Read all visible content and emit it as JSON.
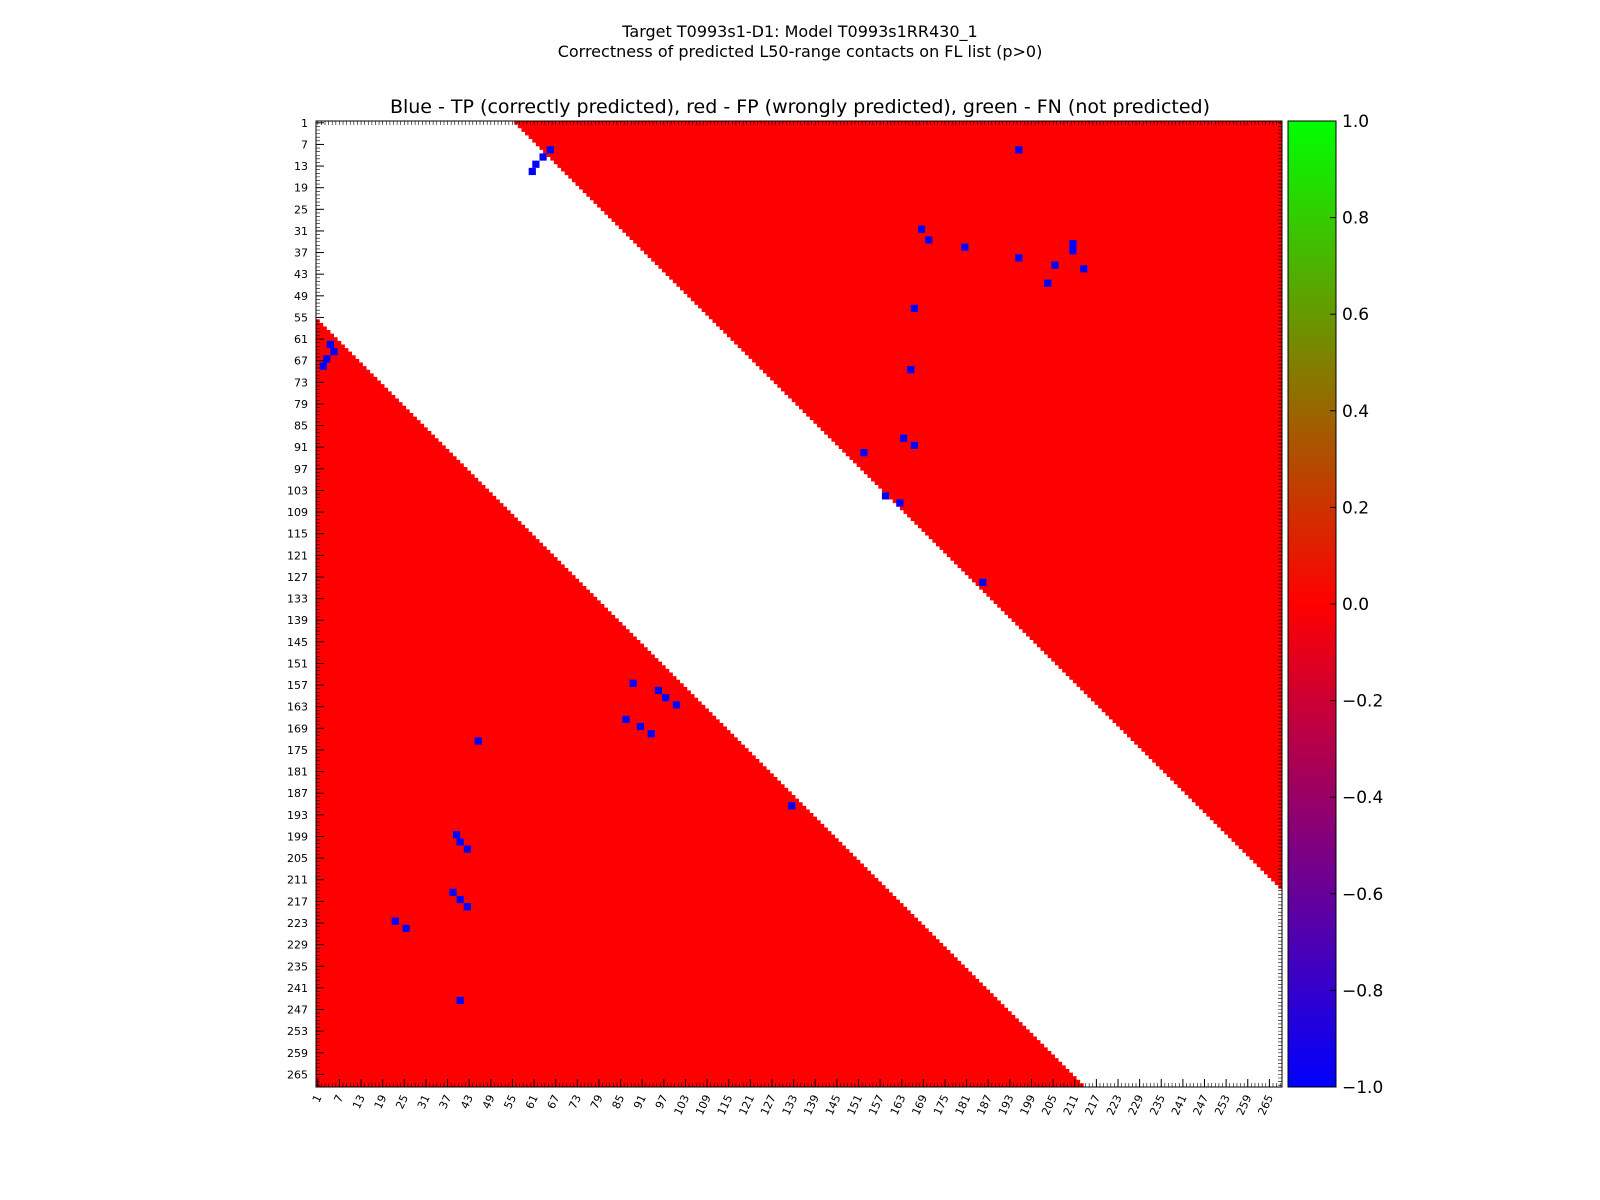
{
  "figure": {
    "title": "Target T0993s1-D1: Model T0993s1RR430_1",
    "subtitle": "Correctness of predicted L50-range contacts on FL list (p>0)"
  },
  "chart_data": {
    "type": "heatmap",
    "title": "Blue - TP (correctly predicted), red - FP (wrongly predicted), green - FN (not predicted)",
    "n_residues": 268,
    "axis_ticks": [
      1,
      7,
      13,
      19,
      25,
      31,
      37,
      43,
      49,
      55,
      61,
      67,
      73,
      79,
      85,
      91,
      97,
      103,
      109,
      115,
      121,
      127,
      133,
      139,
      145,
      151,
      157,
      163,
      169,
      175,
      181,
      187,
      193,
      199,
      205,
      211,
      217,
      223,
      229,
      235,
      241,
      247,
      253,
      259,
      265
    ],
    "colorbar": {
      "min": -1.0,
      "max": 1.0,
      "ticks": [
        1.0,
        0.8,
        0.6,
        0.4,
        0.2,
        0.0,
        -0.2,
        -0.4,
        -0.6,
        -0.8,
        -1.0
      ],
      "tick_labels": [
        "1.0",
        "0.8",
        "0.6",
        "0.4",
        "0.2",
        "0.0",
        "−0.2",
        "−0.4",
        "−0.6",
        "−0.8",
        "−1.0"
      ],
      "colors": {
        "low": "#0000ff",
        "mid": "#ff0000",
        "high": "#00ff00"
      }
    },
    "legend": {
      "TP": "blue",
      "FP": "red",
      "FN": "green"
    },
    "upper_triangle": {
      "min_separation": 55,
      "fill": "FP"
    },
    "lower_triangle": {
      "min_separation": 55,
      "fill": "FP"
    },
    "tp_contacts_upper": [
      [
        8,
        65
      ],
      [
        10,
        63
      ],
      [
        12,
        61
      ],
      [
        14,
        60
      ],
      [
        30,
        168
      ],
      [
        33,
        170
      ],
      [
        35,
        180
      ],
      [
        38,
        195
      ],
      [
        40,
        205
      ],
      [
        36,
        210
      ],
      [
        41,
        213
      ],
      [
        45,
        203
      ],
      [
        52,
        166
      ],
      [
        69,
        165
      ],
      [
        88,
        163
      ],
      [
        90,
        166
      ],
      [
        92,
        152
      ],
      [
        104,
        158
      ],
      [
        106,
        162
      ],
      [
        128,
        185
      ],
      [
        8,
        195
      ],
      [
        34,
        210
      ]
    ],
    "tp_contacts_lower": [
      [
        62,
        4
      ],
      [
        64,
        5
      ],
      [
        66,
        3
      ],
      [
        68,
        2
      ],
      [
        156,
        88
      ],
      [
        158,
        95
      ],
      [
        160,
        97
      ],
      [
        162,
        100
      ],
      [
        166,
        86
      ],
      [
        168,
        90
      ],
      [
        170,
        93
      ],
      [
        198,
        39
      ],
      [
        200,
        40
      ],
      [
        202,
        42
      ],
      [
        214,
        38
      ],
      [
        216,
        40
      ],
      [
        218,
        42
      ],
      [
        222,
        22
      ],
      [
        224,
        25
      ],
      [
        190,
        132
      ],
      [
        172,
        45
      ],
      [
        244,
        40
      ]
    ],
    "fn_contacts": []
  }
}
